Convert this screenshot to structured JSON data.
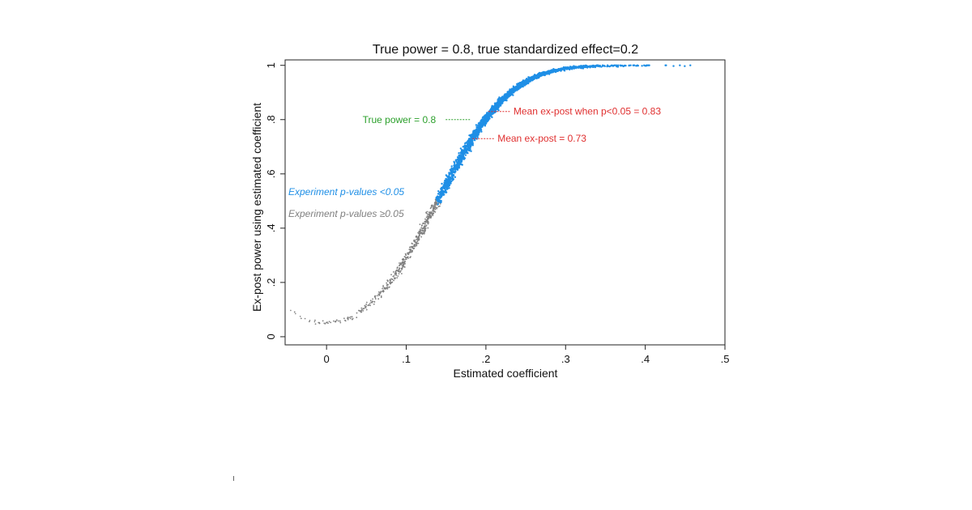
{
  "chart_data": {
    "type": "scatter",
    "title": "True power = 0.8, true standardized effect=0.2",
    "xlabel": "Estimated coefficient",
    "ylabel": "Ex-post power using estimated coefficient",
    "xlim": [
      -0.052,
      0.5
    ],
    "ylim": [
      -0.03,
      1.02
    ],
    "x_ticks": [
      {
        "value": 0,
        "label": "0"
      },
      {
        "value": 0.1,
        "label": ".1"
      },
      {
        "value": 0.2,
        "label": ".2"
      },
      {
        "value": 0.3,
        "label": ".3"
      },
      {
        "value": 0.4,
        "label": ".4"
      },
      {
        "value": 0.5,
        "label": ".5"
      }
    ],
    "y_ticks": [
      {
        "value": 0,
        "label": "0"
      },
      {
        "value": 0.2,
        "label": ".2"
      },
      {
        "value": 0.4,
        "label": ".4"
      },
      {
        "value": 0.6,
        "label": ".6"
      },
      {
        "value": 0.8,
        "label": ".8"
      },
      {
        "value": 1,
        "label": "1"
      }
    ],
    "grid": false,
    "series": [
      {
        "name": "Experiment p-values <0.05",
        "color": "#1f8fe6",
        "x_range": [
          0.14,
          0.47
        ],
        "curve_points": [
          [
            0.14,
            0.5
          ],
          [
            0.16,
            0.62
          ],
          [
            0.18,
            0.73
          ],
          [
            0.2,
            0.82
          ],
          [
            0.22,
            0.88
          ],
          [
            0.25,
            0.94
          ],
          [
            0.3,
            0.985
          ],
          [
            0.35,
            0.997
          ],
          [
            0.4,
            1.0
          ],
          [
            0.47,
            1.0
          ]
        ]
      },
      {
        "name": "Experiment p-values ≥0.05",
        "color": "#808080",
        "x_range": [
          -0.045,
          0.14
        ],
        "curve_points": [
          [
            -0.045,
            0.09
          ],
          [
            0,
            0.05
          ],
          [
            0.02,
            0.07
          ],
          [
            0.05,
            0.14
          ],
          [
            0.08,
            0.24
          ],
          [
            0.1,
            0.31
          ],
          [
            0.12,
            0.4
          ],
          [
            0.14,
            0.5
          ]
        ]
      }
    ],
    "annotations": [
      {
        "text": "True power = 0.8",
        "color": "#2ca02c",
        "x": 0.18,
        "y": 0.8,
        "side": "left"
      },
      {
        "text": "Mean ex-post when p<0.05 = 0.83",
        "color": "#e03030",
        "x": 0.2,
        "y": 0.83,
        "side": "right"
      },
      {
        "text": "Mean ex-post = 0.73",
        "color": "#e03030",
        "x": 0.18,
        "y": 0.73,
        "side": "right"
      }
    ],
    "legend": "inside-left"
  }
}
